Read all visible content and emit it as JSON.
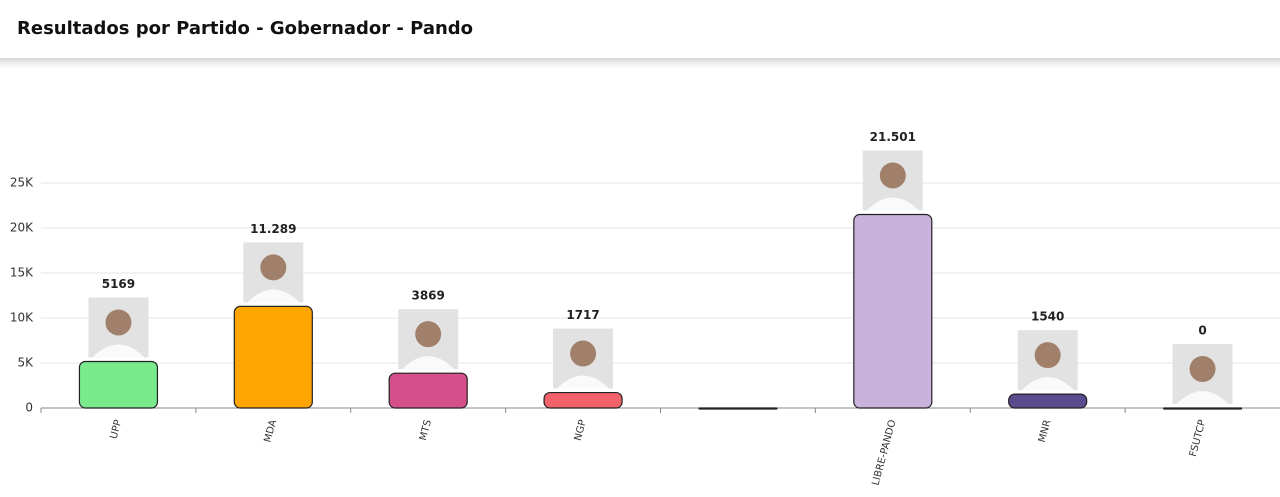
{
  "chart_data": {
    "type": "bar",
    "title": "Resultados por Partido - Gobernador - Pando",
    "categories": [
      "UPP",
      "MDA",
      "MTS",
      "NGP",
      null,
      "LIBRE-PANDO",
      "MNR",
      "FSUTCP"
    ],
    "values": [
      5169,
      11289,
      3869,
      1717,
      0,
      21501,
      1540,
      0
    ],
    "value_labels": [
      "5169",
      "11.289",
      "3869",
      "1717",
      null,
      "21.501",
      "1540",
      "0"
    ],
    "colors": [
      "#7aea8c",
      "#ffa500",
      "#d4508a",
      "#f2626a",
      "#333333",
      "#c9b3dc",
      "#5a4a8e",
      "#333333"
    ],
    "ylim": [
      0,
      25000
    ],
    "yticks": [
      {
        "value": 0,
        "label": "0"
      },
      {
        "value": 5000,
        "label": "5K"
      },
      {
        "value": 10000,
        "label": "10K"
      },
      {
        "value": 15000,
        "label": "15K"
      },
      {
        "value": 20000,
        "label": "20K"
      },
      {
        "value": 25000,
        "label": "25K"
      }
    ],
    "grid": true
  }
}
